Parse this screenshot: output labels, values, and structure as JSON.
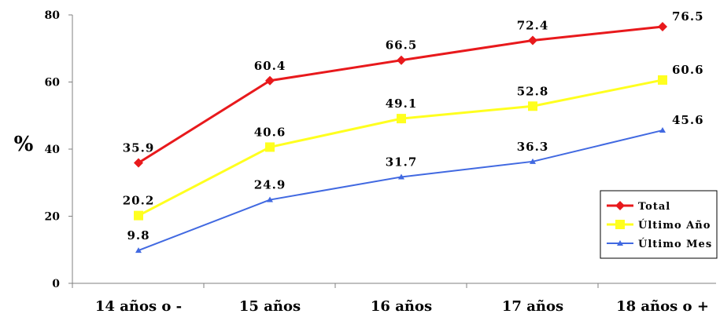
{
  "chart_data": {
    "type": "line",
    "categories": [
      "14 años o -",
      "15 años",
      "16 años",
      "17 años",
      "18 años o +"
    ],
    "ylabel": "%",
    "ylim": [
      0,
      80
    ],
    "yticks": [
      "0",
      "20",
      "40",
      "60",
      "80"
    ],
    "grid": false,
    "legend_position": "bottom-right",
    "series": [
      {
        "name": "Total",
        "color": "#e8191c",
        "marker": "diamond",
        "values": [
          35.9,
          60.4,
          66.5,
          72.4,
          76.5
        ],
        "labels": [
          "35.9",
          "60.4",
          "66.5",
          "72.4",
          "76.5"
        ]
      },
      {
        "name": "Último Año",
        "color": "#ffff1f",
        "marker": "square",
        "values": [
          20.2,
          40.6,
          49.1,
          52.8,
          60.6
        ],
        "labels": [
          "20.2",
          "40.6",
          "49.1",
          "52.8",
          "60.6"
        ]
      },
      {
        "name": "Último Mes",
        "color": "#4169e1",
        "marker": "triangle",
        "values": [
          9.8,
          24.9,
          31.7,
          36.3,
          45.6
        ],
        "labels": [
          "9.8",
          "24.9",
          "31.7",
          "36.3",
          "45.6"
        ]
      }
    ]
  }
}
